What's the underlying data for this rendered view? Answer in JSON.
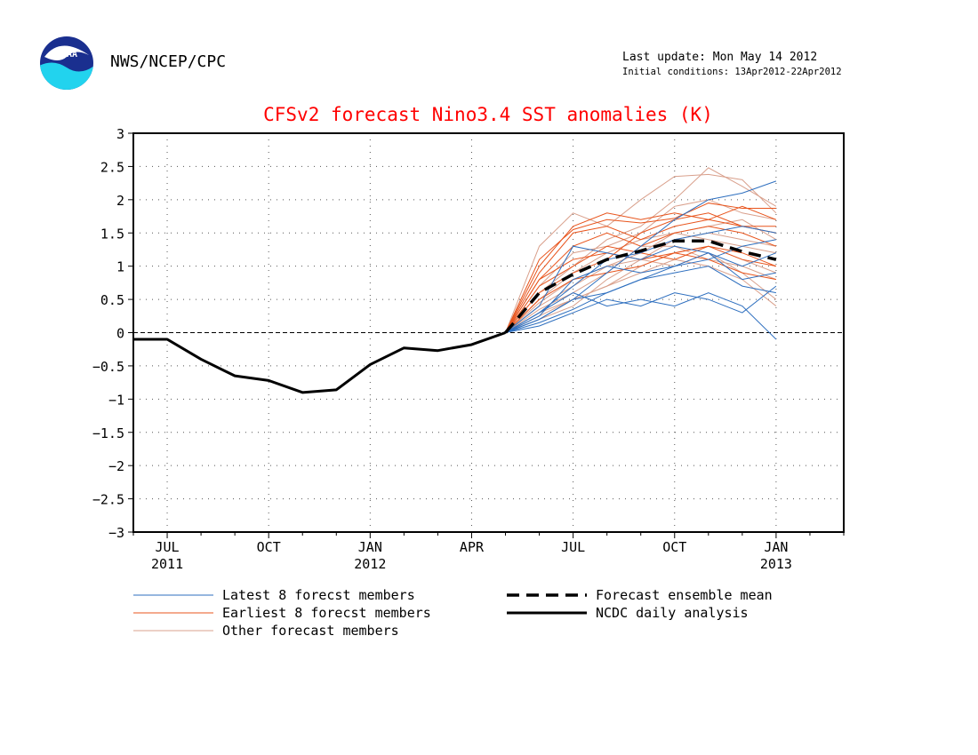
{
  "header": {
    "org": "NWS/NCEP/CPC",
    "last_update": "Last update: Mon May 14 2012",
    "initial_conditions": "Initial conditions: 13Apr2012-22Apr2012",
    "logo_text": "NOAA"
  },
  "chart_data": {
    "type": "line",
    "title": "CFSv2 forecast Nino3.4 SST anomalies (K)",
    "title_color": "#ff0000",
    "xlabel": "",
    "ylabel": "",
    "xlim": [
      0,
      21
    ],
    "ylim": [
      -3,
      3
    ],
    "grid": true,
    "yticks": [
      3,
      2.5,
      2,
      1.5,
      1,
      0.5,
      0,
      -0.5,
      -1,
      -1.5,
      -2,
      -2.5,
      -3
    ],
    "ytick_labels": [
      "3",
      "2.5",
      "2",
      "1.5",
      "1",
      "0.5",
      "0",
      "−0.5",
      "−1",
      "−1.5",
      "−2",
      "−2.5",
      "−3"
    ],
    "xticks": [
      {
        "x": 1,
        "label": "JUL",
        "year": "2011"
      },
      {
        "x": 4,
        "label": "OCT",
        "year": ""
      },
      {
        "x": 7,
        "label": "JAN",
        "year": "2012"
      },
      {
        "x": 10,
        "label": "APR",
        "year": ""
      },
      {
        "x": 13,
        "label": "JUL",
        "year": ""
      },
      {
        "x": 16,
        "label": "OCT",
        "year": ""
      },
      {
        "x": 19,
        "label": "JAN",
        "year": "2013"
      }
    ],
    "observed": {
      "name": "NCDC daily analysis",
      "color": "#000000",
      "x": [
        0,
        1,
        2,
        3,
        4,
        5,
        6,
        7,
        8,
        9,
        10,
        11
      ],
      "values": [
        -0.1,
        -0.1,
        -0.4,
        -0.65,
        -0.72,
        -0.9,
        -0.86,
        -0.48,
        -0.23,
        -0.27,
        -0.18,
        0.0
      ]
    },
    "ensemble_mean": {
      "name": "Forecast ensemble mean",
      "color": "#000000",
      "x": [
        11,
        12,
        13,
        14,
        15,
        16,
        17,
        18,
        19
      ],
      "values": [
        0.0,
        0.6,
        0.88,
        1.1,
        1.23,
        1.38,
        1.38,
        1.22,
        1.1
      ]
    },
    "member_x": [
      11,
      12,
      13,
      14,
      15,
      16,
      17,
      18,
      19
    ],
    "member_groups": [
      {
        "name": "Latest 8 forecst members",
        "color": "#2e6fbf",
        "members": [
          [
            0,
            0.2,
            0.5,
            0.9,
            1.3,
            1.7,
            2.0,
            2.1,
            2.28
          ],
          [
            0,
            0.1,
            0.3,
            0.5,
            0.4,
            0.6,
            0.5,
            0.3,
            0.7
          ],
          [
            0,
            0.3,
            0.6,
            0.4,
            0.5,
            0.4,
            0.6,
            0.4,
            -0.1
          ],
          [
            0,
            0.4,
            1.3,
            1.2,
            1.1,
            1.3,
            1.2,
            0.8,
            0.9
          ],
          [
            0,
            0.25,
            0.8,
            1.0,
            0.9,
            1.0,
            1.1,
            1.3,
            1.4
          ],
          [
            0,
            0.15,
            0.35,
            0.6,
            0.8,
            1.0,
            1.2,
            1.0,
            1.2
          ],
          [
            0,
            0.3,
            0.7,
            1.1,
            1.2,
            1.4,
            1.5,
            1.6,
            1.5
          ],
          [
            0,
            0.2,
            0.5,
            0.6,
            0.8,
            0.9,
            1.0,
            0.7,
            0.6
          ]
        ]
      },
      {
        "name": "Earliest 8 forecst members",
        "color": "#e8541c",
        "members": [
          [
            0,
            1.1,
            1.55,
            1.7,
            1.65,
            1.72,
            1.95,
            1.87,
            1.87
          ],
          [
            0,
            0.9,
            1.5,
            1.6,
            1.4,
            1.6,
            1.7,
            1.9,
            1.7
          ],
          [
            0,
            0.8,
            1.3,
            1.5,
            1.3,
            1.5,
            1.6,
            1.5,
            1.3
          ],
          [
            0,
            0.7,
            1.0,
            1.3,
            1.2,
            1.1,
            1.3,
            1.2,
            1.0
          ],
          [
            0,
            0.6,
            0.9,
            1.1,
            1.5,
            1.7,
            1.8,
            1.6,
            1.5
          ],
          [
            0,
            0.5,
            0.8,
            0.9,
            1.0,
            1.2,
            1.1,
            0.9,
            0.8
          ],
          [
            0,
            1.0,
            1.6,
            1.8,
            1.7,
            1.8,
            1.7,
            1.6,
            1.6
          ],
          [
            0,
            0.8,
            1.1,
            1.2,
            1.1,
            1.2,
            1.3,
            1.1,
            1.0
          ]
        ]
      },
      {
        "name": "Other forecast members",
        "color": "#d9a08c",
        "members": [
          [
            0,
            1.3,
            1.8,
            1.6,
            2.0,
            2.35,
            2.38,
            2.3,
            1.8
          ],
          [
            0,
            0.6,
            1.0,
            1.4,
            1.6,
            2.0,
            2.48,
            2.2,
            1.9
          ],
          [
            0,
            0.4,
            0.7,
            1.0,
            1.2,
            1.5,
            1.6,
            1.7,
            1.4
          ],
          [
            0,
            0.3,
            0.5,
            0.7,
            1.0,
            1.2,
            1.3,
            1.1,
            0.9
          ],
          [
            0,
            0.5,
            0.9,
            1.2,
            1.4,
            1.5,
            1.4,
            1.3,
            1.2
          ],
          [
            0,
            0.2,
            0.4,
            0.8,
            1.1,
            1.0,
            1.2,
            0.9,
            0.5
          ],
          [
            0,
            0.7,
            1.2,
            1.3,
            1.5,
            1.9,
            2.0,
            1.8,
            1.7
          ],
          [
            0,
            0.35,
            0.6,
            0.9,
            1.3,
            1.3,
            1.1,
            1.0,
            0.8
          ],
          [
            0,
            0.45,
            0.8,
            1.0,
            1.1,
            1.4,
            1.5,
            1.4,
            1.3
          ],
          [
            0,
            0.25,
            0.5,
            0.7,
            0.9,
            1.1,
            1.0,
            0.8,
            0.4
          ]
        ]
      }
    ],
    "legend": [
      {
        "label": "Latest 8 forecst members",
        "style": "thin",
        "color": "#2e6fbf",
        "column": "left"
      },
      {
        "label": "Earliest 8 forecst members",
        "style": "thin",
        "color": "#e8541c",
        "column": "left"
      },
      {
        "label": "Other forecast members",
        "style": "thin",
        "color": "#d9a08c",
        "column": "left"
      },
      {
        "label": "Forecast ensemble mean",
        "style": "dashed",
        "color": "#000000",
        "column": "right"
      },
      {
        "label": "NCDC daily analysis",
        "style": "thick",
        "color": "#000000",
        "column": "right"
      }
    ],
    "legend_placement": "bottom"
  }
}
